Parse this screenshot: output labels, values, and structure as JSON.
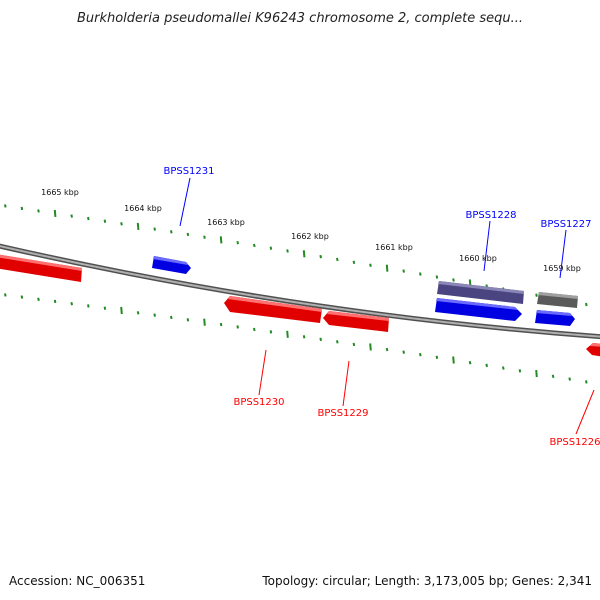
{
  "title": "Burkholderia pseudomallei K96243 chromosome 2, complete sequ...",
  "ticks": [
    {
      "label": "1665 kbp"
    },
    {
      "label": "1664 kbp"
    },
    {
      "label": "1663 kbp"
    },
    {
      "label": "1662 kbp"
    },
    {
      "label": "1661 kbp"
    },
    {
      "label": "1660 kbp"
    },
    {
      "label": "1659 kbp"
    }
  ],
  "genes": [
    {
      "name": "BPSS1231",
      "strand": "forward",
      "color": "#0000ff"
    },
    {
      "name": "BPSS1230",
      "strand": "reverse",
      "color": "#ff0000"
    },
    {
      "name": "BPSS1229",
      "strand": "reverse",
      "color": "#ff0000"
    },
    {
      "name": "BPSS1228",
      "strand": "forward",
      "color": "#0000ff"
    },
    {
      "name": "BPSS1227",
      "strand": "forward",
      "color": "#0000ff"
    },
    {
      "name": "BPSS1226",
      "strand": "reverse",
      "color": "#ff0000"
    }
  ],
  "colors": {
    "forward_gene": "#0000ff",
    "reverse_gene": "#ff0000",
    "backbone": "#808080",
    "tick": "#228b22",
    "dark_feature": "#4a4580",
    "gray_feature": "#666666"
  },
  "footer": {
    "accession": "Accession: NC_006351",
    "summary": "Topology: circular; Length: 3,173,005 bp; Genes: 2,341"
  }
}
